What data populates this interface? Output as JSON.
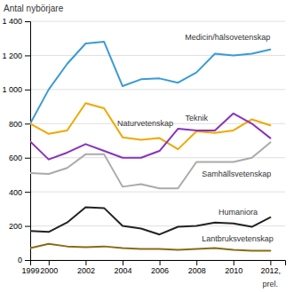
{
  "chart_data": {
    "type": "line",
    "y_label": "Antal nybörjare",
    "x": [
      1999,
      2000,
      2001,
      2002,
      2003,
      2004,
      2005,
      2006,
      2007,
      2008,
      2009,
      2010,
      2011,
      2012
    ],
    "series": [
      {
        "name": "Medicin/hälsovetenskap",
        "color": "#3a9bd5",
        "values": [
          800,
          1000,
          1150,
          1270,
          1280,
          1020,
          1060,
          1065,
          1040,
          1100,
          1210,
          1200,
          1210,
          1235
        ]
      },
      {
        "name": "Naturvetenskap",
        "color": "#f0a800",
        "values": [
          800,
          740,
          760,
          920,
          890,
          720,
          705,
          715,
          650,
          755,
          745,
          760,
          825,
          790
        ]
      },
      {
        "name": "Teknik",
        "color": "#8833bb",
        "values": [
          695,
          590,
          630,
          680,
          640,
          600,
          600,
          640,
          770,
          760,
          760,
          860,
          800,
          715
        ]
      },
      {
        "name": "Samhällsvetenskap",
        "color": "#aaaaaa",
        "values": [
          510,
          505,
          540,
          620,
          620,
          430,
          445,
          420,
          420,
          575,
          575,
          575,
          600,
          690
        ]
      },
      {
        "name": "Humaniora",
        "color": "#222222",
        "values": [
          170,
          165,
          220,
          310,
          305,
          200,
          185,
          150,
          195,
          200,
          220,
          215,
          195,
          250
        ]
      },
      {
        "name": "Lantbruksvetenskap",
        "color": "#8b6a14",
        "values": [
          70,
          95,
          80,
          75,
          80,
          70,
          65,
          65,
          60,
          65,
          70,
          60,
          55,
          55
        ]
      }
    ],
    "xlim": [
      1999,
      2012.8
    ],
    "xticks": [
      1999,
      2000,
      2002,
      2004,
      2006,
      2008,
      2010,
      2012,
      {
        "value": 2012,
        "label": "2012,"
      }
    ],
    "ylim": [
      0,
      1400
    ],
    "yticks": [
      0,
      200,
      400,
      600,
      800,
      {
        "value": 1000,
        "label": "1 000"
      },
      {
        "value": 1200,
        "label": "1 200"
      },
      {
        "value": 1400,
        "label": "1 400"
      }
    ],
    "annotations": [
      "prel."
    ],
    "grid": true
  }
}
